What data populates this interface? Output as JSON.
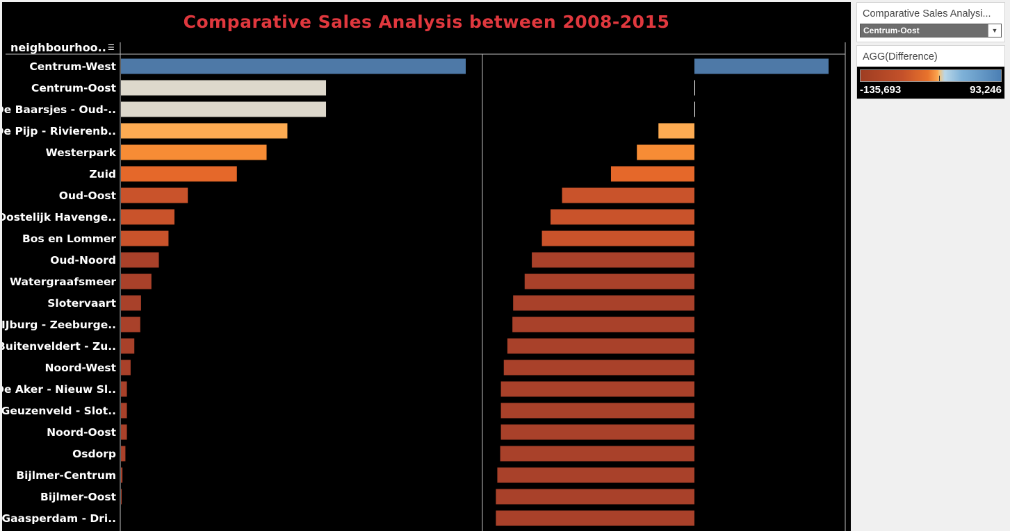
{
  "title": "Comparative Sales Analysis between 2008-2015",
  "dimension_header": "neighbourhoo..",
  "filter_card": {
    "title": "Comparative Sales Analysi...",
    "selected": "Centrum-Oost"
  },
  "legend_card": {
    "title": "AGG(Difference)",
    "min_label": "-135,693",
    "max_label": "93,246"
  },
  "colors": {
    "positive": "#4e79a7",
    "neutral": "#ddd8cc",
    "light_orange": "#fdab52",
    "orange": "#f78c35",
    "dark_orange": "#e5682a",
    "red_orange": "#c9532b",
    "brick": "#a9412a",
    "title": "#e0383e"
  },
  "chart_data": {
    "type": "bar",
    "categories": [
      "Centrum-West",
      "Centrum-Oost",
      "De Baarsjes - Oud-..",
      "De Pijp - Rivierenb..",
      "Westerpark",
      "Zuid",
      "Oud-Oost",
      "Oostelijk Havenge..",
      "Bos en Lommer",
      "Oud-Noord",
      "Watergraafsmeer",
      "Slotervaart",
      "IJburg - Zeeburge..",
      "Buitenveldert - Zu..",
      "Noord-West",
      "De Aker - Nieuw Sl..",
      "Geuzenveld - Slot..",
      "Noord-Oost",
      "Osdorp",
      "Bijlmer-Centrum",
      "Bijlmer-Oost",
      "Gaasperdam - Dri.."
    ],
    "series": [
      {
        "values": [
          232000,
          138000,
          138000,
          112000,
          98000,
          78000,
          45000,
          36000,
          32000,
          25500,
          20500,
          13500,
          13000,
          9000,
          6500,
          4000,
          4000,
          4000,
          3000,
          1000,
          500,
          0
        ]
      },
      {
        "values": [
          93246,
          0,
          0,
          -25000,
          -40000,
          -58000,
          -92000,
          -100000,
          -106000,
          -113000,
          -118000,
          -126000,
          -126500,
          -130000,
          -132500,
          -134500,
          -134500,
          -134500,
          -135000,
          -137000,
          -138000,
          -138000
        ]
      }
    ],
    "difference_colors": [
      "positive",
      "neutral",
      "neutral",
      "light_orange",
      "orange",
      "dark_orange",
      "red_orange",
      "red_orange",
      "red_orange",
      "brick",
      "brick",
      "brick",
      "brick",
      "brick",
      "brick",
      "brick",
      "brick",
      "brick",
      "brick",
      "brick",
      "brick",
      "brick"
    ],
    "color_legend_range": [
      -135693,
      93246
    ]
  }
}
